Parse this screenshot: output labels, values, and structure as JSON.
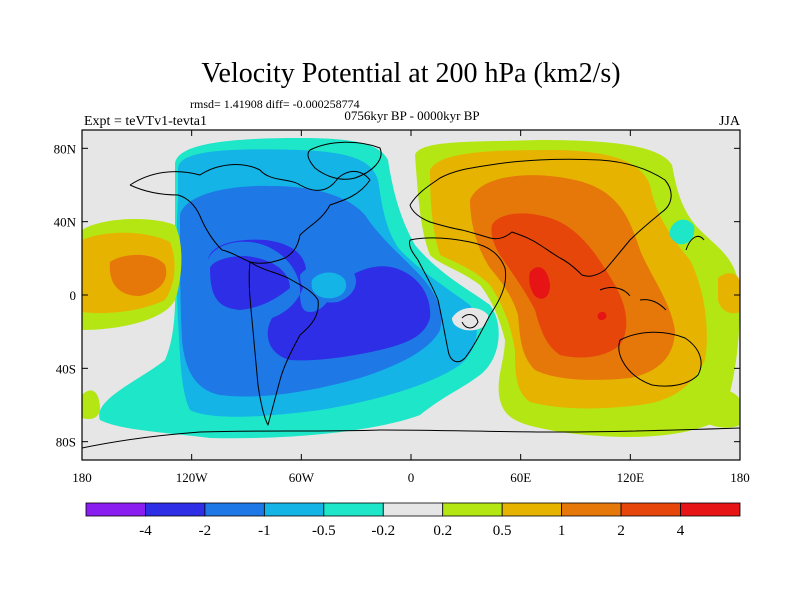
{
  "chart_data": {
    "type": "heatmap",
    "title": "Velocity Potential at 200 hPa (km2/s)",
    "stats_line": "rmsd= 1.41908 diff= -0.000258774",
    "left_label": "Expt = teVTv1-tevta1",
    "center_label": "0756kyr BP - 0000kyr BP",
    "right_label": "JJA",
    "x_ticks": [
      "180",
      "120W",
      "60W",
      "0",
      "60E",
      "120E",
      "180"
    ],
    "x_tick_values": [
      -180,
      -120,
      -60,
      0,
      60,
      120,
      180
    ],
    "y_ticks": [
      "80N",
      "40N",
      "0",
      "40S",
      "80S"
    ],
    "y_tick_values": [
      80,
      40,
      0,
      -40,
      -80
    ],
    "xlim": [
      -180,
      180
    ],
    "ylim": [
      -90,
      90
    ],
    "colorbar": {
      "labels": [
        "-4",
        "-2",
        "-1",
        "-0.5",
        "-0.2",
        "0.2",
        "0.5",
        "1",
        "2",
        "4"
      ],
      "colors": [
        "#8a1ef0",
        "#2e2ee6",
        "#1e78e6",
        "#14b4e6",
        "#1ee6c8",
        "#e6e6e6",
        "#b4e614",
        "#e6b400",
        "#e6780a",
        "#e6460a",
        "#e61414"
      ]
    },
    "regions": [
      {
        "name": "atlantic-americas-low",
        "level": "-0.5 to -0.2",
        "center_lon": -55,
        "center_lat": 0
      },
      {
        "name": "americas-low",
        "level": "-2 to -4",
        "center_lon": -60,
        "center_lat": -5
      },
      {
        "name": "asia-indian-ocean-high",
        "level": "2 to 4",
        "center_lon": 90,
        "center_lat": 0
      },
      {
        "name": "central-pacific-high",
        "level": "1 to 2",
        "center_lon": -155,
        "center_lat": 8
      }
    ]
  }
}
